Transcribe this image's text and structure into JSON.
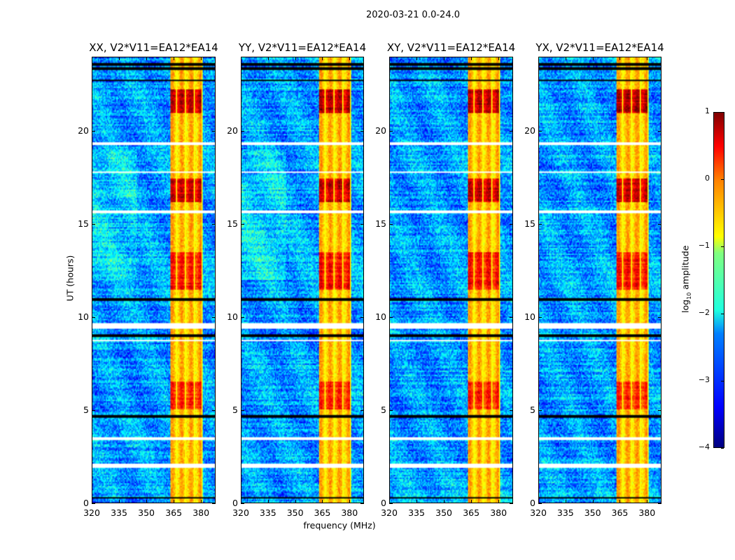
{
  "suptitle": "2020-03-21 0.0-24.0",
  "chart_data": {
    "type": "heatmap",
    "xlabel": "frequency (MHz)",
    "ylabel": "UT (hours)",
    "xlim": [
      320,
      388
    ],
    "ylim": [
      0,
      24
    ],
    "xticks": [
      "320",
      "335",
      "350",
      "365",
      "380"
    ],
    "yticks": [
      "0",
      "5",
      "10",
      "15",
      "20"
    ],
    "panels": [
      {
        "title": "XX, V2*V11=EA12*EA14"
      },
      {
        "title": "YY, V2*V11=EA12*EA14"
      },
      {
        "title": "XY, V2*V11=EA12*EA14"
      },
      {
        "title": "YX, V2*V11=EA12*EA14"
      }
    ],
    "colorbar": {
      "label_prefix": "log",
      "label_sub": "10",
      "label_suffix": " amplitude",
      "range": [
        -4,
        1
      ],
      "ticks": [
        "1",
        "0",
        "−1",
        "−2",
        "−3",
        "−4"
      ],
      "colormap": "jet"
    },
    "background_log_amplitude": -2.6,
    "rfi_band_mhz": [
      363,
      381
    ],
    "rfi_band_log_amplitude": -0.6,
    "rfi_bright_hours": [
      [
        21.0,
        22.3,
        0.6
      ],
      [
        16.2,
        17.5,
        0.5
      ],
      [
        11.5,
        13.5,
        0.2
      ],
      [
        5.0,
        6.5,
        0.1
      ]
    ],
    "flagged_white_hours": [
      [
        9.35,
        9.7
      ],
      [
        3.4,
        3.55
      ],
      [
        1.9,
        2.1
      ],
      [
        15.6,
        15.75
      ],
      [
        19.25,
        19.4
      ],
      [
        17.75,
        17.85
      ],
      [
        8.7,
        8.8
      ]
    ],
    "flagged_black_hours": [
      [
        23.3,
        23.45
      ],
      [
        23.55,
        23.7
      ],
      [
        0.2,
        0.3
      ],
      [
        8.95,
        9.05
      ],
      [
        10.9,
        11.0
      ],
      [
        4.6,
        4.7
      ],
      [
        22.7,
        22.78
      ]
    ]
  }
}
